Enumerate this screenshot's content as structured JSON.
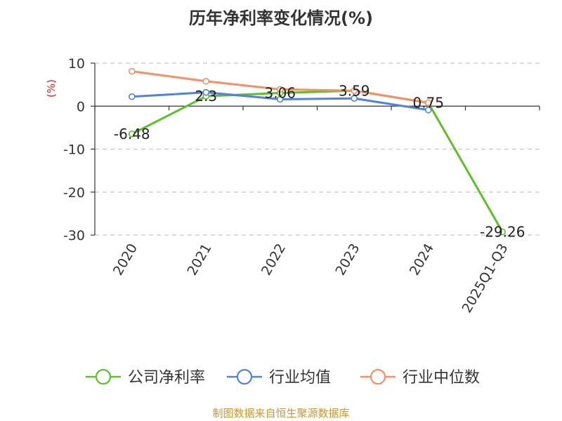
{
  "title": "历年净利率变化情况(%)",
  "source": "制图数据来自恒生聚源数据库",
  "chart_data": {
    "type": "line",
    "title": "历年净利率变化情况(%)",
    "ylabel": "(%)",
    "categories": [
      "2020",
      "2021",
      "2022",
      "2023",
      "2024",
      "2025Q1-Q3"
    ],
    "ylim": [
      -30,
      10
    ],
    "yticks": [
      10,
      0,
      -10,
      -20,
      -30
    ],
    "grid": true,
    "legend_position": "bottom",
    "series": [
      {
        "name": "公司净利率",
        "color": "#5cc128",
        "values": [
          -6.48,
          2.3,
          3.06,
          3.59,
          0.75,
          -29.26
        ],
        "labels": [
          "-6.48",
          "2.3",
          "3.06",
          "3.59",
          "0.75",
          "-29.26"
        ]
      },
      {
        "name": "行业均值",
        "color": "#5083dc",
        "values": [
          2.2,
          3.2,
          1.6,
          1.8,
          -0.9,
          null
        ]
      },
      {
        "name": "行业中位数",
        "color": "#f59064",
        "values": [
          8.1,
          5.8,
          3.9,
          3.6,
          0.8,
          null
        ]
      }
    ]
  }
}
